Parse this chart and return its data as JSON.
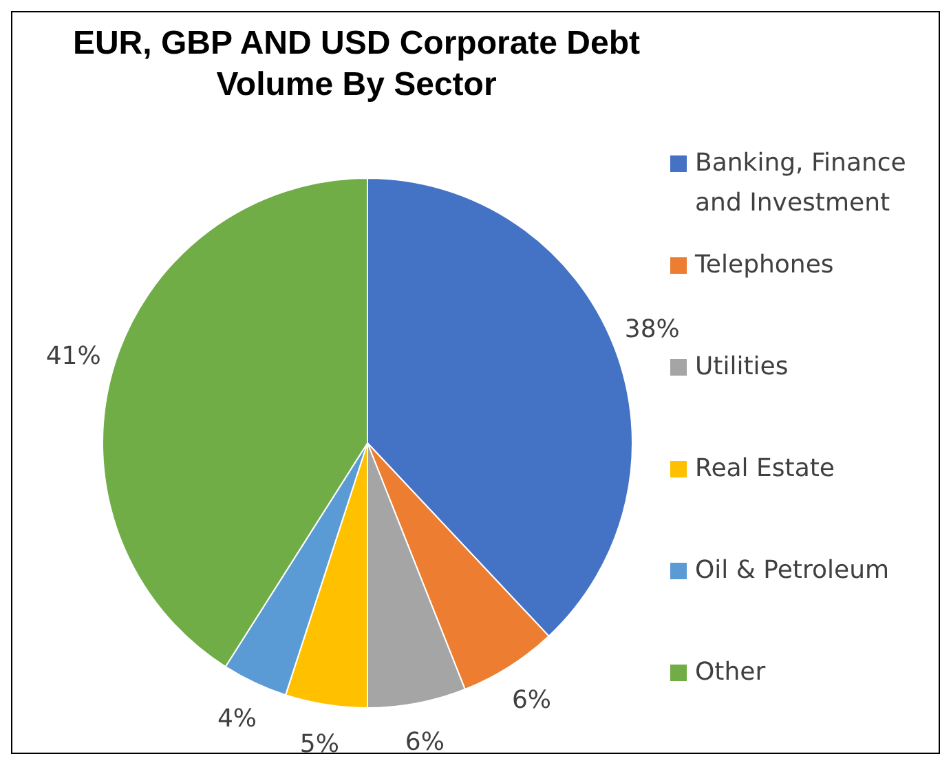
{
  "chart_data": {
    "type": "pie",
    "title": "EUR, GBP AND USD Corporate Debt\nVolume By Sector",
    "categories": [
      "Banking, Finance and Investment",
      "Telephones",
      "Utilities",
      "Real Estate",
      "Oil & Petroleum",
      "Other"
    ],
    "values": [
      38,
      6,
      6,
      5,
      4,
      41
    ],
    "colors": [
      "#4472c4",
      "#ed7d31",
      "#a5a5a5",
      "#ffc000",
      "#5b9bd5",
      "#70ad47"
    ],
    "value_labels": [
      "38%",
      "6%",
      "6%",
      "5%",
      "4%",
      "41%"
    ],
    "legend": "right"
  }
}
